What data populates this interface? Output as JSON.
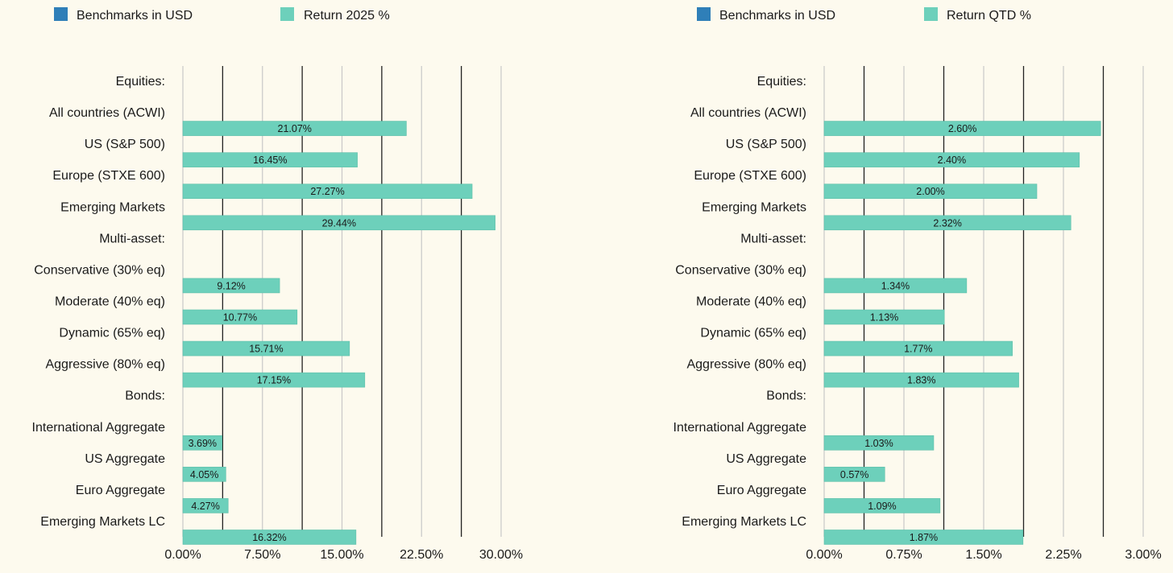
{
  "colors": {
    "background": "#fdfaee",
    "benchmark_swatch": "#2f7fb8",
    "bar": "#6dd0bb",
    "bar_edge": "#5cbfa9",
    "grid_dark": "#222222",
    "grid_light": "#c8c8c8"
  },
  "chart_data": [
    {
      "type": "bar",
      "orientation": "horizontal",
      "legend": [
        "Benchmarks in USD",
        "Return 2025 %"
      ],
      "legend_position": "top",
      "categories": [
        "Equities:",
        "All countries (ACWI)",
        "US (S&P 500)",
        "Europe (STXE 600)",
        "Emerging Markets",
        "Multi-asset:",
        "Conservative (30% eq)",
        "Moderate (40% eq)",
        "Dynamic (65% eq)",
        "Aggressive (80% eq)",
        "Bonds:",
        "International Aggregate",
        "US Aggregate",
        "Euro Aggregate",
        "Emerging Markets LC"
      ],
      "series": [
        {
          "name": "Return 2025 %",
          "values": [
            null,
            21.07,
            16.45,
            27.27,
            29.44,
            null,
            9.12,
            10.77,
            15.71,
            17.15,
            null,
            3.69,
            4.05,
            4.27,
            16.32
          ],
          "labels": [
            "",
            "21.07%",
            "16.45%",
            "27.27%",
            "29.44%",
            "",
            "9.12%",
            "10.77%",
            "15.71%",
            "17.15%",
            "",
            "3.69%",
            "4.05%",
            "4.27%",
            "16.32%"
          ]
        }
      ],
      "xlim": [
        0,
        30
      ],
      "ticks": [
        0,
        7.5,
        15,
        22.5,
        30
      ],
      "tick_labels": [
        "0.00%",
        "7.50%",
        "15.00%",
        "22.50%",
        "30.00%"
      ],
      "grid_values": [
        0,
        3.75,
        7.5,
        11.25,
        15,
        18.75,
        22.5,
        26.25,
        30
      ],
      "grid_dark": [
        3.75,
        11.25,
        18.75,
        26.25
      ],
      "grid": true
    },
    {
      "type": "bar",
      "orientation": "horizontal",
      "legend": [
        "Benchmarks in USD",
        "Return QTD %"
      ],
      "legend_position": "top",
      "categories": [
        "Equities:",
        "All countries (ACWI)",
        "US (S&P 500)",
        "Europe (STXE 600)",
        "Emerging Markets",
        "Multi-asset:",
        "Conservative (30% eq)",
        "Moderate (40% eq)",
        "Dynamic (65% eq)",
        "Aggressive (80% eq)",
        "Bonds:",
        "International Aggregate",
        "US Aggregate",
        "Euro Aggregate",
        "Emerging Markets LC"
      ],
      "series": [
        {
          "name": "Return QTD %",
          "values": [
            null,
            2.6,
            2.4,
            2.0,
            2.32,
            null,
            1.34,
            1.13,
            1.77,
            1.83,
            null,
            1.03,
            0.57,
            1.09,
            1.87
          ],
          "labels": [
            "",
            "2.60%",
            "2.40%",
            "2.00%",
            "2.32%",
            "",
            "1.34%",
            "1.13%",
            "1.77%",
            "1.83%",
            "",
            "1.03%",
            "0.57%",
            "1.09%",
            "1.87%"
          ]
        }
      ],
      "xlim": [
        0,
        3
      ],
      "ticks": [
        0,
        0.75,
        1.5,
        2.25,
        3
      ],
      "tick_labels": [
        "0.00%",
        "0.75%",
        "1.50%",
        "2.25%",
        "3.00%"
      ],
      "grid_values": [
        0,
        0.375,
        0.75,
        1.125,
        1.5,
        1.875,
        2.25,
        2.625,
        3
      ],
      "grid_dark": [
        0.375,
        1.125,
        1.875,
        2.625
      ],
      "grid": true
    }
  ]
}
